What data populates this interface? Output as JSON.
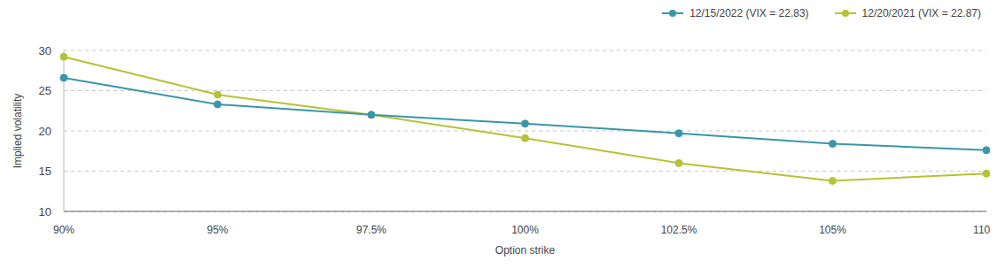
{
  "chart_data": {
    "type": "line",
    "x_label": "Option strike",
    "y_label": "Implied volatility",
    "categories": [
      "90%",
      "95%",
      "97.5%",
      "100%",
      "102.5%",
      "105%",
      "110%"
    ],
    "series": [
      {
        "name": "12/20/2021 (VIX = 22.87)",
        "color": "#b5c334",
        "values": [
          29.2,
          24.5,
          22.0,
          19.1,
          16.0,
          13.8,
          14.7
        ]
      },
      {
        "name": "12/15/2022 (VIX = 22.83)",
        "color": "#3a97a8",
        "values": [
          26.6,
          23.3,
          22.0,
          20.9,
          19.7,
          18.4,
          17.6
        ]
      }
    ],
    "ylim": [
      10,
      30
    ],
    "yticks": [
      10,
      15,
      20,
      25,
      30
    ],
    "grid": true,
    "legend": "top-right",
    "marker": "circle"
  }
}
